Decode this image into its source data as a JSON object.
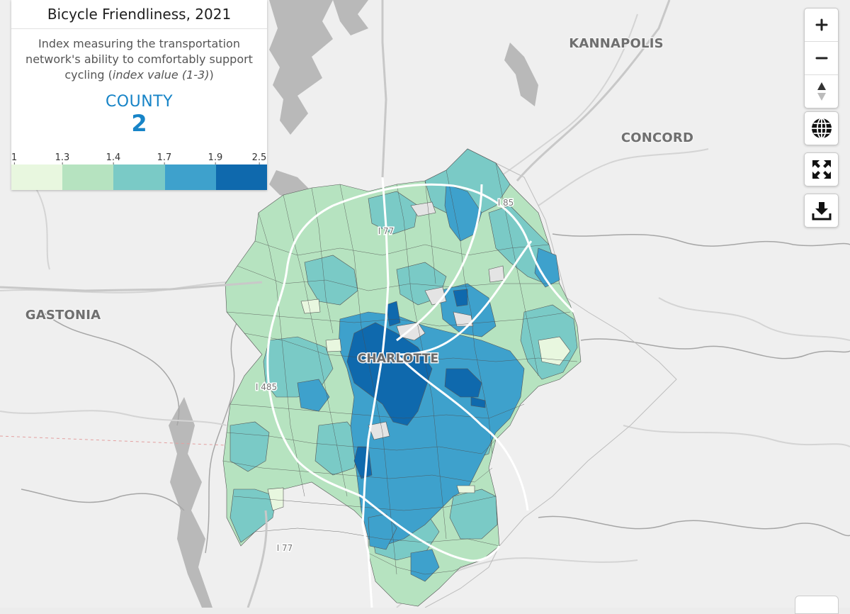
{
  "legend": {
    "title": "Bicycle Friendliness, 2021",
    "description_main": "Index measuring the transportation network's ability to comfortably support cycling (",
    "description_italic": "index value (1-3)",
    "description_end": ")",
    "summary_label": "COUNTY",
    "summary_value": "2",
    "tick_labels": [
      "1",
      "1.3",
      "1.4",
      "1.7",
      "1.9",
      "2.5"
    ],
    "bin_colors": [
      "#e8f7df",
      "#b6e3c0",
      "#7acac6",
      "#3ea1cc",
      "#0f69ad"
    ]
  },
  "map_labels": {
    "kannapolis": "KANNAPOLIS",
    "concord": "CONCORD",
    "gastonia": "GASTONIA",
    "charlotte": "CHARLOTTE",
    "i85": "I 85",
    "i77_north": "I 77",
    "i485": "I 485",
    "i77_south": "I 77"
  },
  "controls": {
    "zoom_in_icon": "plus-icon",
    "zoom_out_icon": "minus-icon",
    "reset_north_icon": "compass-arrow-icon",
    "basemap_icon": "globe-icon",
    "fullscreen_icon": "expand-icon",
    "download_icon": "download-icon"
  }
}
